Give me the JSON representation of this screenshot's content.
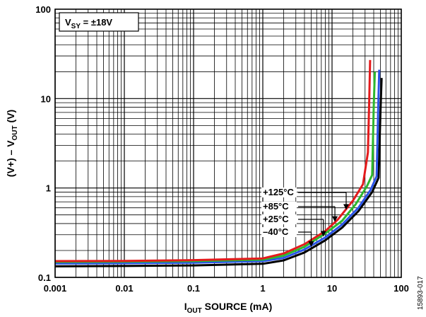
{
  "chart_data": {
    "type": "line",
    "xlabel": {
      "main": "I",
      "sub": "OUT",
      "rest": " SOURCE (mA)"
    },
    "ylabel": {
      "pre": "(V+) – V",
      "sub": "OUT",
      "post": " (V)"
    },
    "x_scale": "log",
    "y_scale": "log",
    "xlim": [
      0.001,
      100
    ],
    "ylim": [
      0.1,
      100
    ],
    "x_ticks": [
      0.001,
      0.01,
      0.1,
      1,
      10,
      100
    ],
    "x_tick_labels": [
      "0.001",
      "0.01",
      "0.1",
      "1",
      "10",
      "100"
    ],
    "y_ticks": [
      0.1,
      1,
      10,
      100
    ],
    "y_tick_labels": [
      "0.1",
      "1",
      "10",
      "100"
    ],
    "grid": true,
    "annotation_box": {
      "pre": "V",
      "sub": "SY",
      "post": " = ±18V"
    },
    "figure_id": "15893-017",
    "series": [
      {
        "name": "+125°C",
        "color": "#e41a1c",
        "x": [
          0.001,
          0.01,
          0.1,
          1,
          2,
          4,
          8,
          12,
          20,
          28,
          33,
          34.5,
          35.5
        ],
        "y": [
          0.152,
          0.153,
          0.156,
          0.163,
          0.185,
          0.235,
          0.33,
          0.44,
          0.72,
          1.1,
          2.5,
          10,
          27
        ]
      },
      {
        "name": "+85°C",
        "color": "#2db82d",
        "x": [
          0.001,
          0.01,
          0.1,
          1,
          2,
          4,
          8,
          14,
          22,
          32,
          38,
          40,
          41.5
        ],
        "y": [
          0.149,
          0.15,
          0.152,
          0.158,
          0.175,
          0.22,
          0.31,
          0.43,
          0.66,
          1.05,
          1.4,
          8,
          20
        ]
      },
      {
        "name": "+25°C",
        "color": "#2a54e8",
        "x": [
          0.001,
          0.01,
          0.1,
          1,
          2,
          4,
          8,
          14,
          24,
          36,
          44,
          46.5,
          48
        ],
        "y": [
          0.143,
          0.144,
          0.146,
          0.152,
          0.165,
          0.205,
          0.28,
          0.39,
          0.6,
          0.95,
          1.35,
          8,
          21
        ]
      },
      {
        "name": "−40°C",
        "color": "#000000",
        "x": [
          0.001,
          0.01,
          0.1,
          1,
          2,
          4,
          8,
          14,
          24,
          38,
          47,
          50,
          52
        ],
        "y": [
          0.133,
          0.134,
          0.136,
          0.142,
          0.155,
          0.19,
          0.26,
          0.36,
          0.55,
          0.9,
          1.3,
          7,
          17
        ]
      }
    ],
    "legend_annotations": [
      {
        "label": "+125°C",
        "x": 16,
        "y": 0.56
      },
      {
        "label": "+85°C",
        "x": 11,
        "y": 0.41
      },
      {
        "label": "+25°C",
        "x": 7.5,
        "y": 0.28
      },
      {
        "label": "–40°C",
        "x": 5,
        "y": 0.215
      }
    ]
  }
}
